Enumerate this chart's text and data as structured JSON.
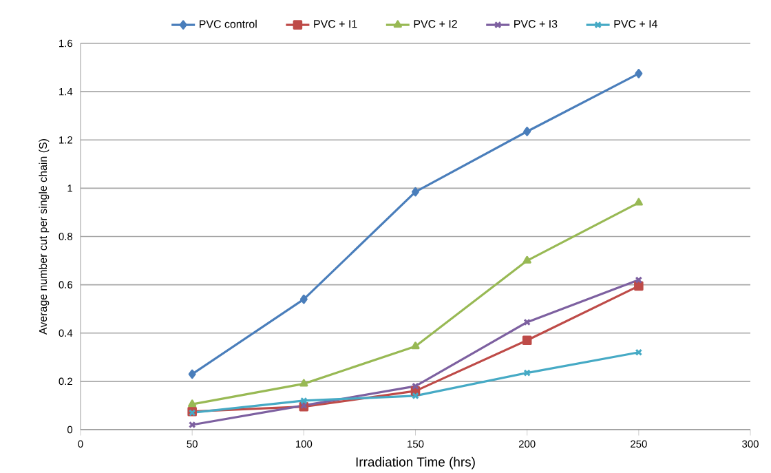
{
  "chart_data": {
    "type": "line",
    "xlabel": "Irradiation Time (hrs)",
    "ylabel": "Average number cut per single chain (S)",
    "x": [
      50,
      100,
      150,
      200,
      250
    ],
    "series": [
      {
        "name": "PVC control",
        "color": "#4a7ebb",
        "marker": "diamond",
        "values": [
          0.23,
          0.54,
          0.985,
          1.235,
          1.475
        ]
      },
      {
        "name": "PVC + I1",
        "color": "#be4b48",
        "marker": "square",
        "values": [
          0.075,
          0.095,
          0.16,
          0.37,
          0.595
        ]
      },
      {
        "name": "PVC + I2",
        "color": "#98b954",
        "marker": "triangle",
        "values": [
          0.105,
          0.19,
          0.345,
          0.7,
          0.94
        ]
      },
      {
        "name": "PVC + I3",
        "color": "#7d60a0",
        "marker": "cross",
        "values": [
          0.02,
          0.1,
          0.18,
          0.445,
          0.62
        ]
      },
      {
        "name": "PVC + I4",
        "color": "#46aac5",
        "marker": "cross",
        "values": [
          0.07,
          0.12,
          0.14,
          0.235,
          0.32
        ]
      }
    ],
    "xlim": [
      0,
      300
    ],
    "xticks": [
      0,
      50,
      100,
      150,
      200,
      250,
      300
    ],
    "ylim": [
      0,
      1.6
    ],
    "yticks": [
      0,
      0.2,
      0.4,
      0.6,
      0.8,
      1,
      1.2,
      1.4,
      1.6
    ],
    "grid": "y",
    "legend": "top",
    "line_style": "solid"
  }
}
